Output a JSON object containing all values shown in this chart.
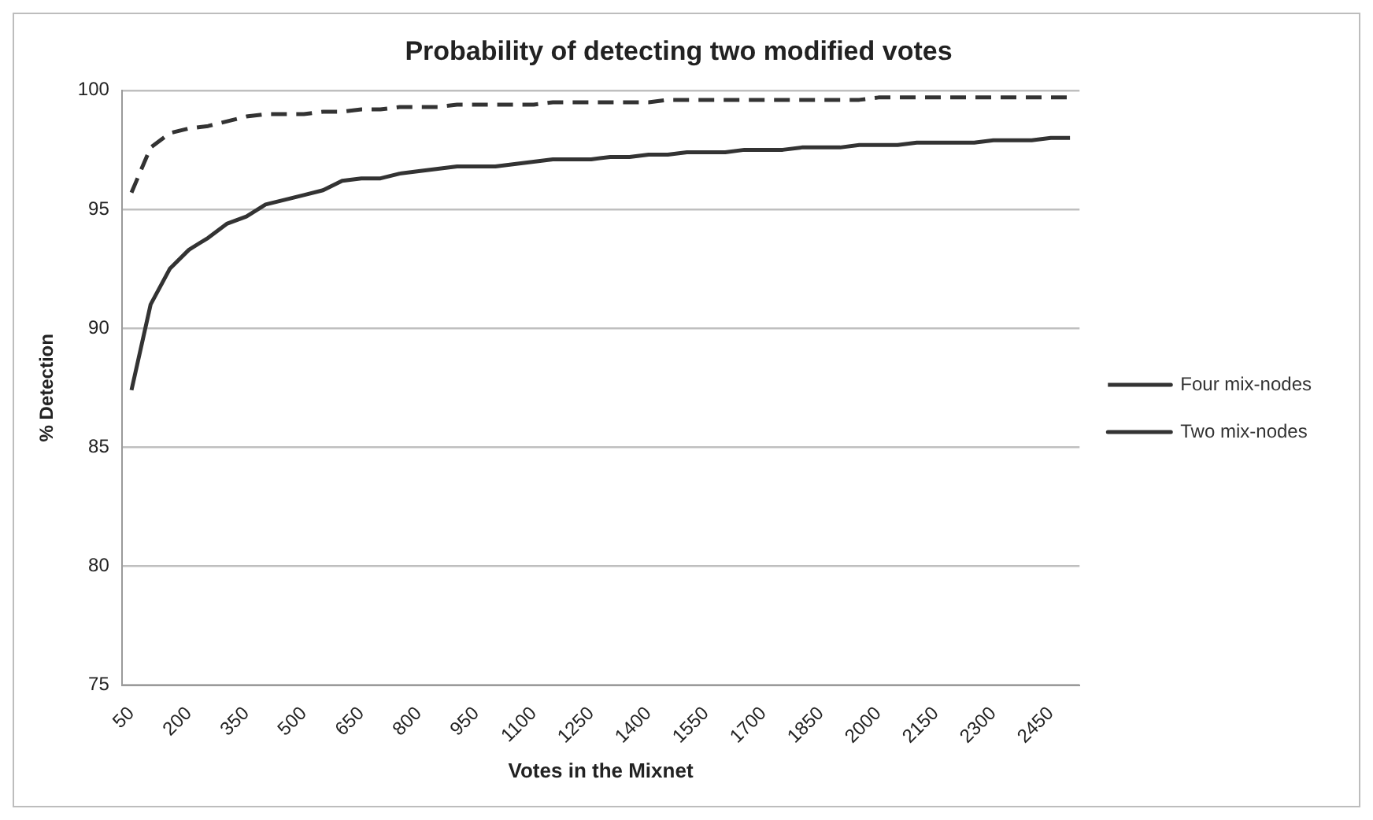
{
  "chart_data": {
    "type": "line",
    "title": "Probability of detecting two modified votes",
    "xlabel": "Votes in the Mixnet",
    "ylabel": "% Detection",
    "categories": [
      "50",
      null,
      null,
      "200",
      null,
      null,
      "350",
      null,
      null,
      "500",
      null,
      null,
      "650",
      null,
      null,
      "800",
      null,
      null,
      "950",
      null,
      null,
      "1100",
      null,
      null,
      "1250",
      null,
      null,
      "1400",
      null,
      null,
      "1550",
      null,
      null,
      "1700",
      null,
      null,
      "1850",
      null,
      null,
      "2000",
      null,
      null,
      "2150",
      null,
      null,
      "2300",
      null,
      null,
      "2450",
      null
    ],
    "series": [
      {
        "name": "Four mix-nodes",
        "color": "#333333",
        "line_style": "dashed",
        "values": [
          95.7,
          97.6,
          98.2,
          98.4,
          98.5,
          98.7,
          98.9,
          99.0,
          99.0,
          99.0,
          99.1,
          99.1,
          99.2,
          99.2,
          99.3,
          99.3,
          99.3,
          99.4,
          99.4,
          99.4,
          99.4,
          99.4,
          99.5,
          99.5,
          99.5,
          99.5,
          99.5,
          99.5,
          99.6,
          99.6,
          99.6,
          99.6,
          99.6,
          99.6,
          99.6,
          99.6,
          99.6,
          99.6,
          99.6,
          99.7,
          99.7,
          99.7,
          99.7,
          99.7,
          99.7,
          99.7,
          99.7,
          99.7,
          99.7,
          99.7
        ]
      },
      {
        "name": "Two mix-nodes",
        "color": "#333333",
        "line_style": "solid",
        "values": [
          87.4,
          91.0,
          92.5,
          93.3,
          93.8,
          94.4,
          94.7,
          95.2,
          95.4,
          95.6,
          95.8,
          96.2,
          96.3,
          96.3,
          96.5,
          96.6,
          96.7,
          96.8,
          96.8,
          96.8,
          96.9,
          97.0,
          97.1,
          97.1,
          97.1,
          97.2,
          97.2,
          97.3,
          97.3,
          97.4,
          97.4,
          97.4,
          97.5,
          97.5,
          97.5,
          97.6,
          97.6,
          97.6,
          97.7,
          97.7,
          97.7,
          97.8,
          97.8,
          97.8,
          97.8,
          97.9,
          97.9,
          97.9,
          98.0,
          98.0
        ]
      }
    ],
    "ylim": [
      75,
      100
    ],
    "yticks": [
      75,
      80,
      85,
      90,
      95,
      100
    ],
    "grid": "y",
    "legend": "right",
    "marker": "none"
  }
}
